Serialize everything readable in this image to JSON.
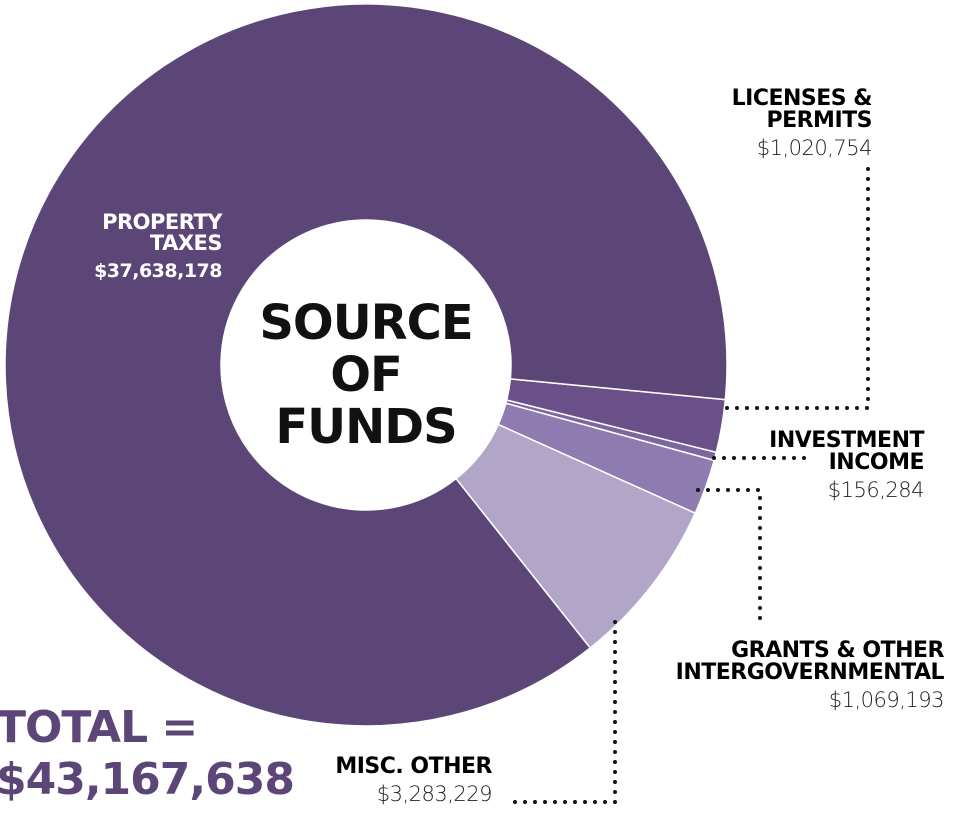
{
  "chart_data": {
    "type": "donut",
    "title": "SOURCE OF FUNDS",
    "total": "TOTAL = $43,167,638",
    "categories": [
      "LICENSES & PERMITS",
      "INVESTMENT INCOME",
      "GRANTS & OTHER INTERGOVERNMENTAL",
      "MISC. OTHER",
      "PROPERTY TAXES"
    ],
    "values": [
      1020754,
      156284,
      1069193,
      3283229,
      37638178
    ],
    "value_labels": [
      "$1,020,754",
      "$156,284",
      "$1,069,193",
      "$3,283,229",
      "$37,638,178"
    ],
    "colors": [
      "#6a4f88",
      "#7d66a0",
      "#8e7bb0",
      "#b1a6c8",
      "#5c4677"
    ]
  }
}
